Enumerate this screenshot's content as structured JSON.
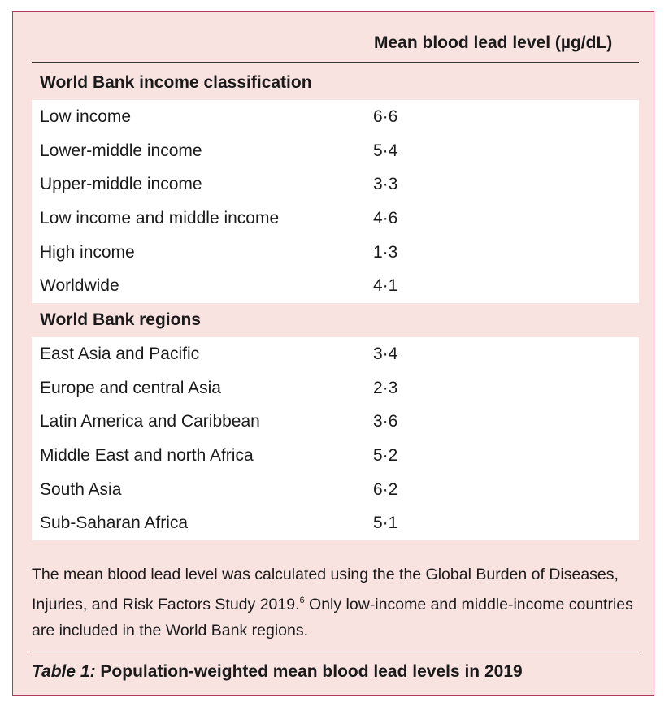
{
  "table": {
    "column_header": "Mean blood lead level (µg/dL)",
    "sections": [
      {
        "title": "World Bank income classification",
        "rows": [
          {
            "label": "Low income",
            "value": "6·6"
          },
          {
            "label": "Lower-middle income",
            "value": "5·4"
          },
          {
            "label": "Upper-middle income",
            "value": "3·3"
          },
          {
            "label": "Low income and middle income",
            "value": "4·6"
          },
          {
            "label": "High income",
            "value": "1·3"
          },
          {
            "label": "Worldwide",
            "value": "4·1"
          }
        ]
      },
      {
        "title": "World Bank regions",
        "rows": [
          {
            "label": "East Asia and Pacific",
            "value": "3·4"
          },
          {
            "label": "Europe and central Asia",
            "value": "2·3"
          },
          {
            "label": "Latin America and Caribbean",
            "value": "3·6"
          },
          {
            "label": "Middle East and north Africa",
            "value": "5·2"
          },
          {
            "label": "South Asia",
            "value": "6·2"
          },
          {
            "label": "Sub-Saharan Africa",
            "value": "5·1"
          }
        ]
      }
    ]
  },
  "footnote": {
    "text_before": "The mean blood lead level was calculated using the the Global Burden of Diseases, Injuries, and Risk Factors Study 2019.",
    "reference": "6",
    "text_after": " Only low-income and middle-income countries are included in the World Bank regions."
  },
  "caption": {
    "label": "Table 1:",
    "text": " Population-weighted mean blood lead levels in 2019"
  }
}
